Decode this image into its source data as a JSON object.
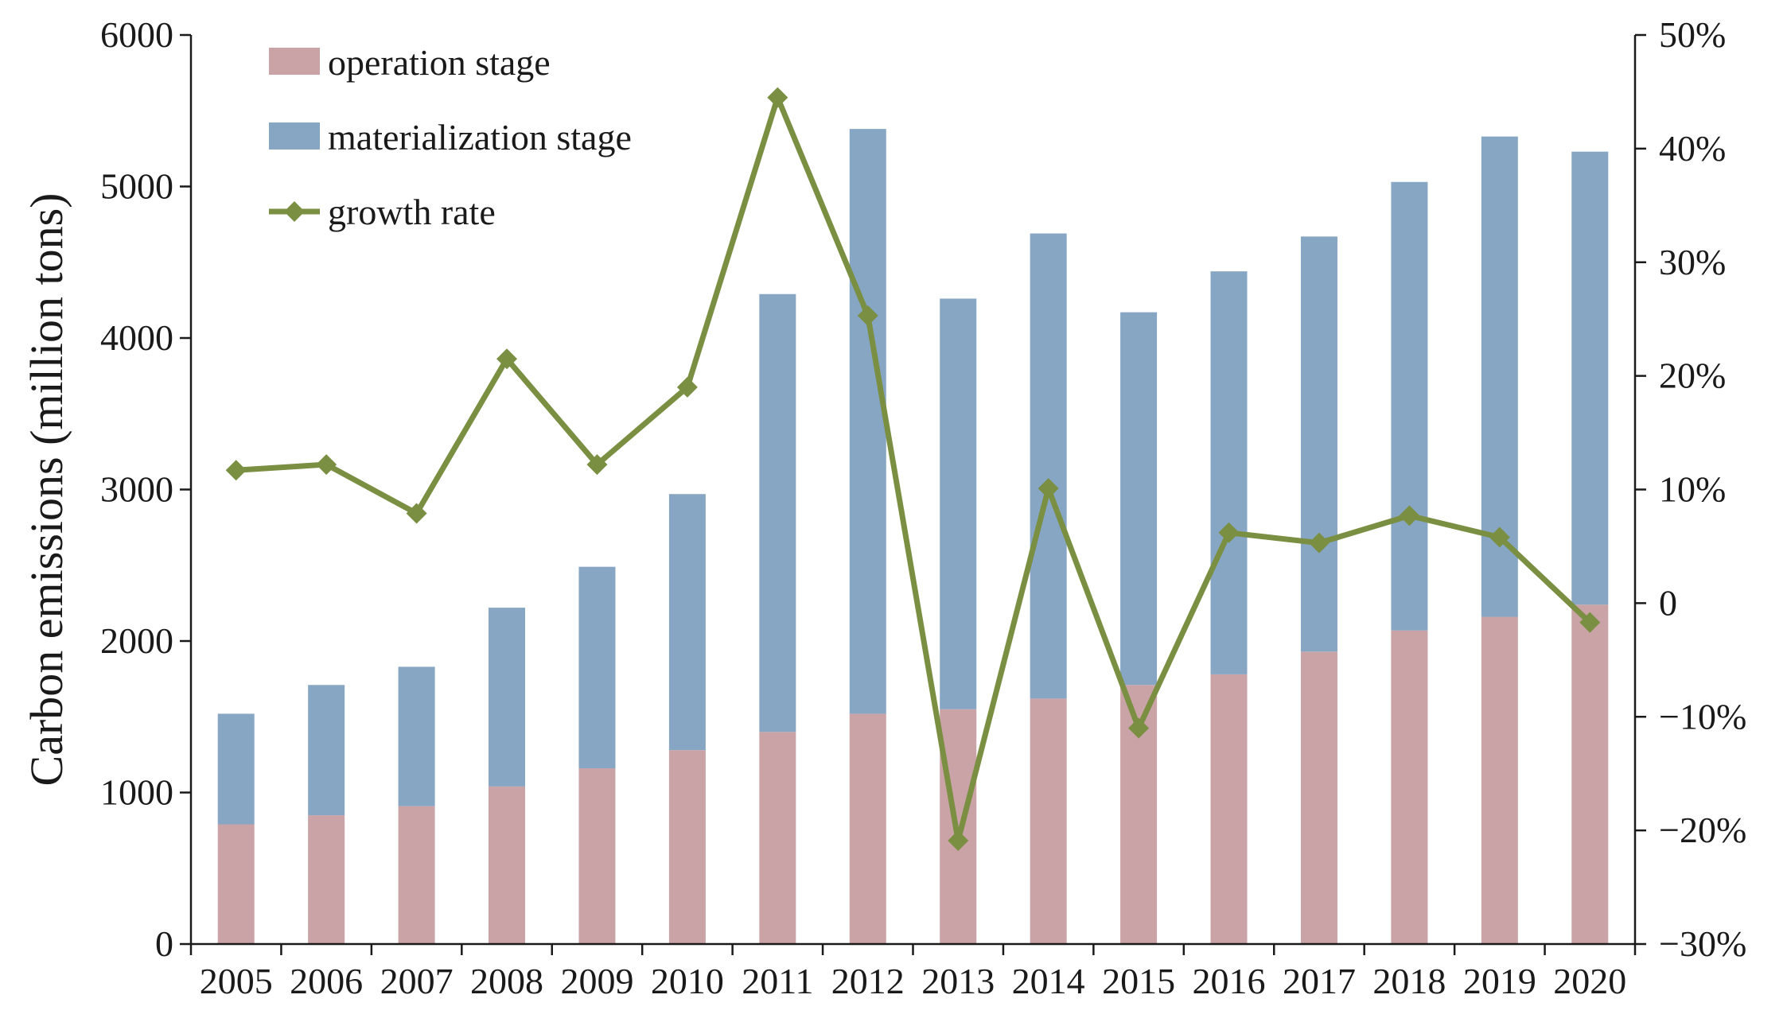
{
  "chart_data": {
    "type": "bar",
    "stacked": true,
    "title": "",
    "xlabel": "",
    "ylabel": "Carbon emissions (million tons)",
    "ylim": [
      0,
      6000
    ],
    "y_ticks": [
      "0",
      "1000",
      "2000",
      "3000",
      "4000",
      "5000",
      "6000"
    ],
    "y2lim": [
      -30,
      50
    ],
    "y2_ticks": [
      "−30%",
      "−20%",
      "−10%",
      "0",
      "10%",
      "20%",
      "30%",
      "40%",
      "50%"
    ],
    "categories": [
      "2005",
      "2006",
      "2007",
      "2008",
      "2009",
      "2010",
      "2011",
      "2012",
      "2013",
      "2014",
      "2015",
      "2016",
      "2017",
      "2018",
      "2019",
      "2020"
    ],
    "series": [
      {
        "name": "operation stage",
        "kind": "bar",
        "color": "#c9a3a6",
        "values": [
          790,
          850,
          910,
          1040,
          1160,
          1280,
          1400,
          1520,
          1550,
          1620,
          1710,
          1780,
          1930,
          2070,
          2160,
          2240
        ]
      },
      {
        "name": "materialization stage",
        "kind": "bar",
        "color": "#87a6c3",
        "values": [
          730,
          860,
          920,
          1180,
          1330,
          1690,
          2890,
          3860,
          2710,
          3070,
          2460,
          2660,
          2740,
          2960,
          3170,
          2990
        ]
      },
      {
        "name": "growth rate",
        "kind": "line",
        "axis": "right",
        "unit": "%",
        "color": "#7a8f42",
        "values": [
          11.7,
          12.2,
          7.9,
          21.5,
          12.2,
          19.0,
          44.5,
          25.3,
          -20.9,
          10.1,
          -11.0,
          6.2,
          5.3,
          7.7,
          5.8,
          -1.7
        ]
      }
    ],
    "legend_position": "top-left",
    "grid": false
  }
}
